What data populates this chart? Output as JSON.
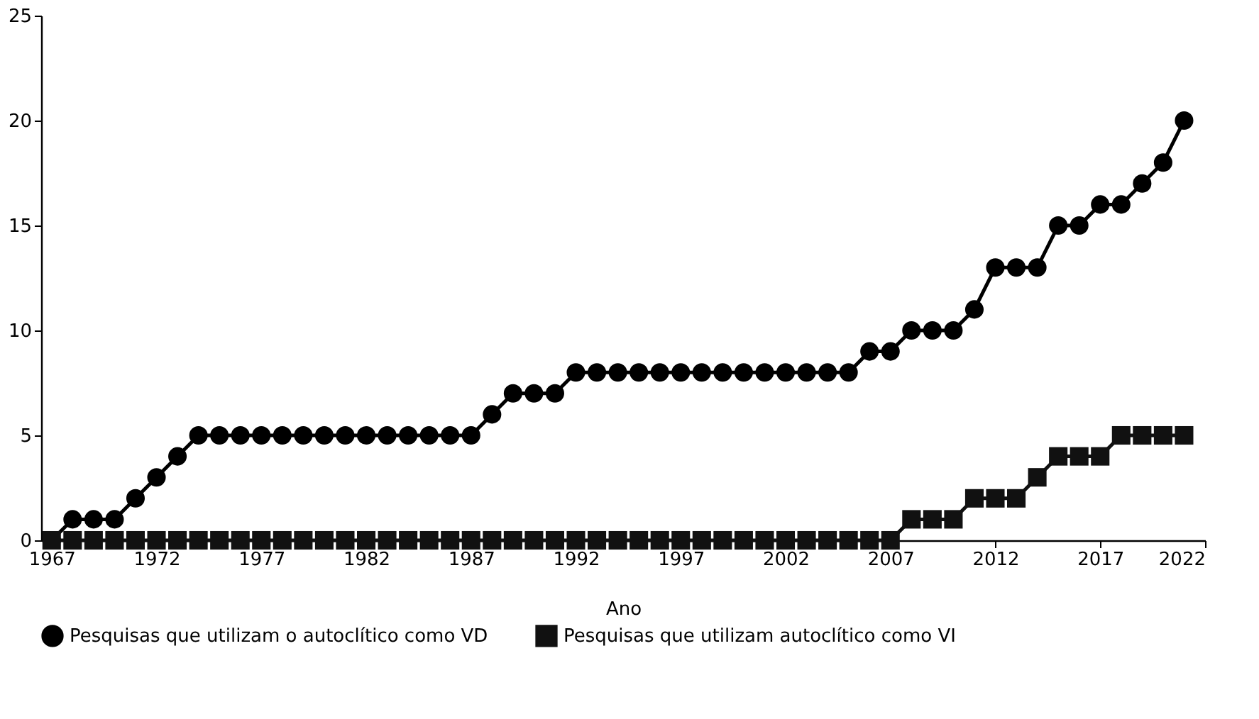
{
  "chart_data": {
    "type": "line",
    "xlabel": "Ano",
    "x": [
      1967,
      1968,
      1969,
      1970,
      1971,
      1972,
      1973,
      1974,
      1975,
      1976,
      1977,
      1978,
      1979,
      1980,
      1981,
      1982,
      1983,
      1984,
      1985,
      1986,
      1987,
      1988,
      1989,
      1990,
      1991,
      1992,
      1993,
      1994,
      1995,
      1996,
      1997,
      1998,
      1999,
      2000,
      2001,
      2002,
      2003,
      2004,
      2005,
      2006,
      2007,
      2008,
      2009,
      2010,
      2011,
      2012,
      2013,
      2014,
      2015,
      2016,
      2017,
      2018,
      2019,
      2020,
      2021
    ],
    "series": [
      {
        "name": "Pesquisas que utilizam o autoclítico como VD",
        "color": "#000000",
        "marker": "circle",
        "values": [
          0,
          1,
          1,
          1,
          2,
          3,
          4,
          5,
          5,
          5,
          5,
          5,
          5,
          5,
          5,
          5,
          5,
          5,
          5,
          5,
          5,
          6,
          7,
          7,
          7,
          8,
          8,
          8,
          8,
          8,
          8,
          8,
          8,
          8,
          8,
          8,
          8,
          8,
          8,
          9,
          9,
          10,
          10,
          10,
          11,
          13,
          13,
          13,
          15,
          15,
          16,
          16,
          17,
          18,
          20
        ]
      },
      {
        "name": "Pesquisas que utilizam autoclítico como VI",
        "color": "#111111",
        "marker": "square",
        "values": [
          0,
          0,
          0,
          0,
          0,
          0,
          0,
          0,
          0,
          0,
          0,
          0,
          0,
          0,
          0,
          0,
          0,
          0,
          0,
          0,
          0,
          0,
          0,
          0,
          0,
          0,
          0,
          0,
          0,
          0,
          0,
          0,
          0,
          0,
          0,
          0,
          0,
          0,
          0,
          0,
          0,
          1,
          1,
          1,
          2,
          2,
          2,
          3,
          4,
          4,
          4,
          5,
          5,
          5,
          5
        ]
      }
    ],
    "xlim": [
      1966.5,
      2022
    ],
    "xticks": [
      1967,
      1972,
      1977,
      1982,
      1987,
      1992,
      1997,
      2002,
      2007,
      2012,
      2017,
      2022
    ],
    "ylim": [
      0,
      25
    ],
    "yticks": [
      0,
      5,
      10,
      15,
      20,
      25
    ],
    "grid": false,
    "legend": "bottom",
    "line_style": "solid"
  }
}
